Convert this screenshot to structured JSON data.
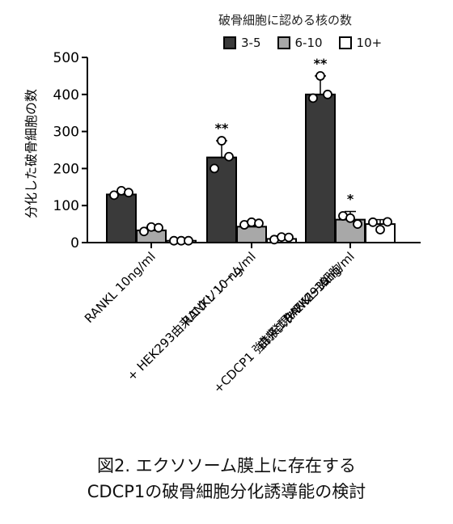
{
  "legend": {
    "title": "破骨細胞に認める核の数",
    "items": [
      {
        "label": "3-5",
        "color": "#3a3a3a"
      },
      {
        "label": "6-10",
        "color": "#a8a8a8"
      },
      {
        "label": "10+",
        "color": "#ffffff"
      }
    ]
  },
  "caption": {
    "line1": "図2. エクソソーム膜上に存在する",
    "line2": "CDCP1の破骨細胞分化誘導能の検討"
  },
  "chart_data": {
    "type": "bar",
    "ylabel": "分化した破骨細胞の数",
    "xlabel": "",
    "ylim": [
      0,
      500
    ],
    "yticks": [
      0,
      100,
      200,
      300,
      400,
      500
    ],
    "categories": [
      [
        "RANKL 10ng/ml"
      ],
      [
        "RANKL 10 ng/ml",
        "+ HEK293由来エクソソーム"
      ],
      [
        "RANKL 10ng/ml",
        "+CDCP1 強制発現HEK293細胞",
        "由来エクソソーム"
      ]
    ],
    "series": [
      {
        "name": "3-5",
        "color": "#3a3a3a",
        "values": [
          130,
          230,
          400
        ],
        "errors": [
          5,
          45,
          50
        ],
        "points": [
          [
            128,
            140,
            135
          ],
          [
            200,
            275,
            232
          ],
          [
            390,
            450,
            400
          ]
        ],
        "annotations": [
          "",
          "**",
          "**"
        ]
      },
      {
        "name": "6-10",
        "color": "#a8a8a8",
        "values": [
          33,
          43,
          62
        ],
        "errors": [
          8,
          15,
          22
        ],
        "points": [
          [
            30,
            42,
            40
          ],
          [
            48,
            55,
            52
          ],
          [
            72,
            66,
            50
          ]
        ],
        "annotations": [
          "",
          "",
          "*"
        ]
      },
      {
        "name": "10+",
        "color": "#ffffff",
        "values": [
          5,
          10,
          50
        ],
        "errors": [
          3,
          8,
          12
        ],
        "points": [
          [
            5,
            5,
            5
          ],
          [
            8,
            15,
            14
          ],
          [
            55,
            35,
            56
          ]
        ],
        "annotations": [
          "",
          "",
          ""
        ]
      }
    ]
  }
}
